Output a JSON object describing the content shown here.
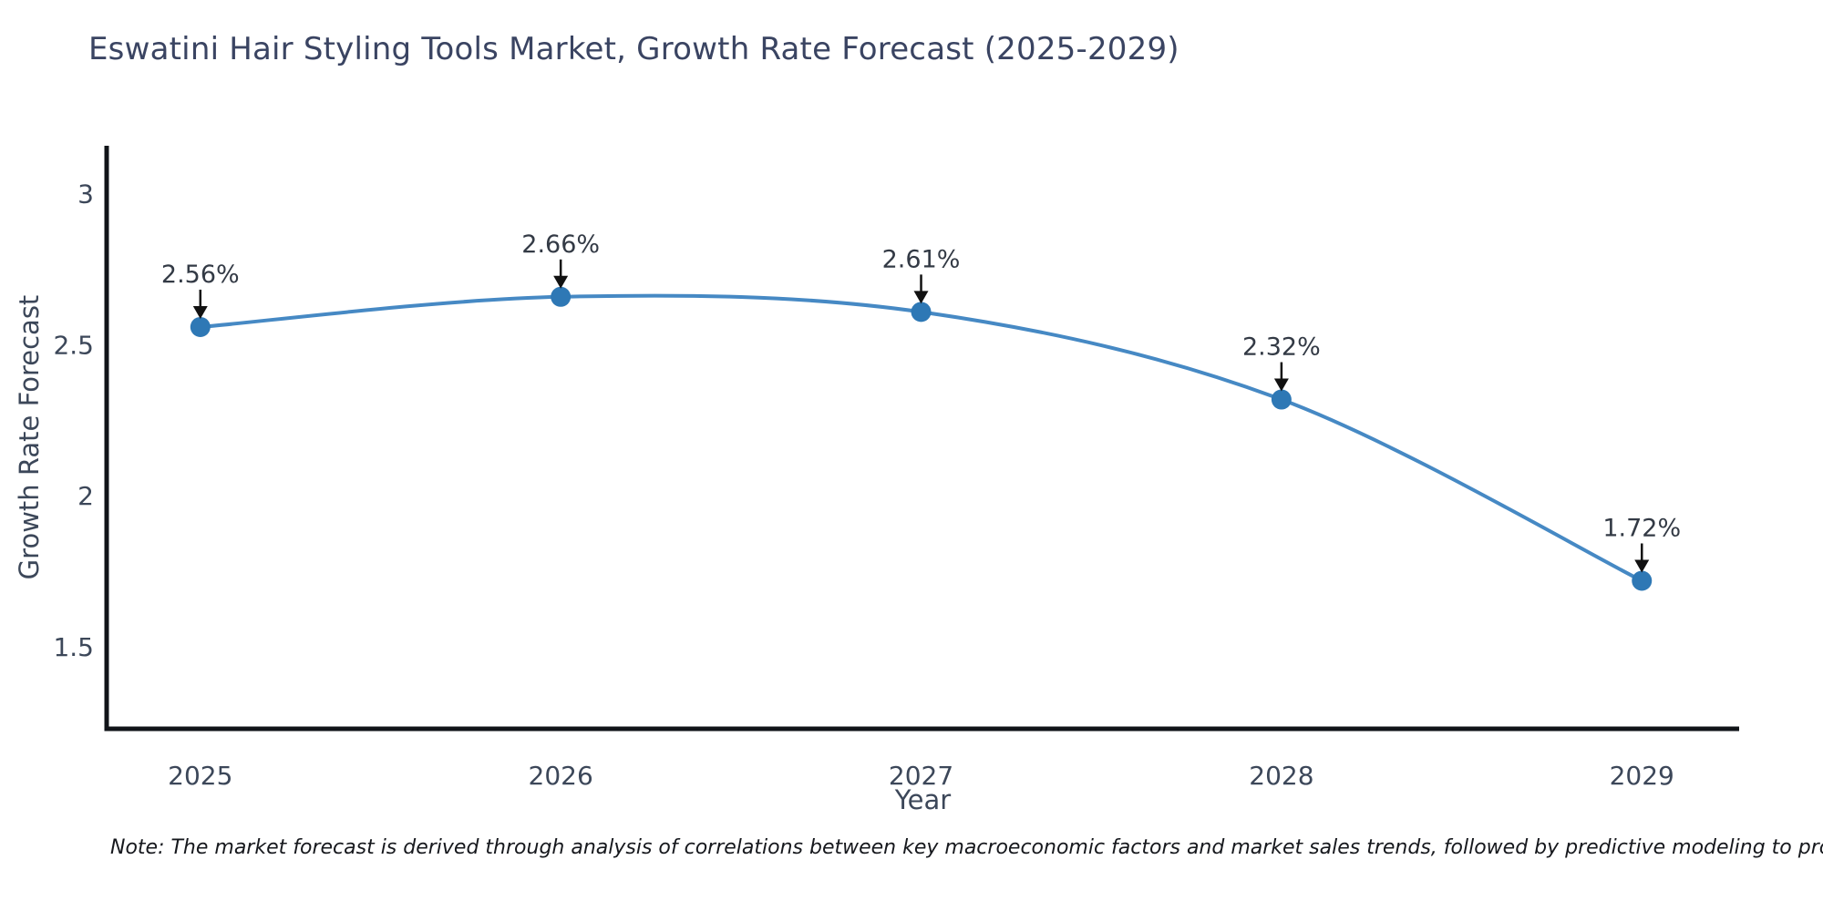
{
  "note": "Note: The market forecast is derived through analysis of correlations between key macroeconomic factors and market sales trends, followed by predictive modeling to project future sales",
  "chart_data": {
    "type": "line",
    "title": "Eswatini Hair Styling Tools Market, Growth Rate Forecast (2025-2029)",
    "xlabel": "Year",
    "ylabel": "Growth Rate Forecast",
    "x": [
      2025,
      2026,
      2027,
      2028,
      2029
    ],
    "series": [
      {
        "name": "Growth Rate Forecast",
        "values": [
          2.56,
          2.66,
          2.61,
          2.32,
          1.72
        ]
      }
    ],
    "point_labels": [
      "2.56%",
      "2.66%",
      "2.61%",
      "2.32%",
      "1.72%"
    ],
    "xticks": [
      {
        "value": 2025,
        "label": "2025"
      },
      {
        "value": 2026,
        "label": "2026"
      },
      {
        "value": 2027,
        "label": "2027"
      },
      {
        "value": 2028,
        "label": "2028"
      },
      {
        "value": 2029,
        "label": "2029"
      }
    ],
    "yticks": [
      {
        "value": 1.5,
        "label": "1.5"
      },
      {
        "value": 2,
        "label": "2"
      },
      {
        "value": 2.5,
        "label": "2.5"
      },
      {
        "value": 3,
        "label": "3"
      }
    ],
    "xlim": [
      2024.74,
      2029.27
    ],
    "ylim": [
      1.23,
      3.16
    ],
    "grid": false,
    "legend": false,
    "annotation_style": "down-arrow",
    "colors": {
      "line": "#4689c4",
      "marker": "#2e78b5",
      "axis": "#111418",
      "tick_text": "#3c4759",
      "title_text": "#3a4462",
      "annotation_text": "#333a45",
      "arrow": "#111111",
      "note_text": "#16181d"
    }
  }
}
